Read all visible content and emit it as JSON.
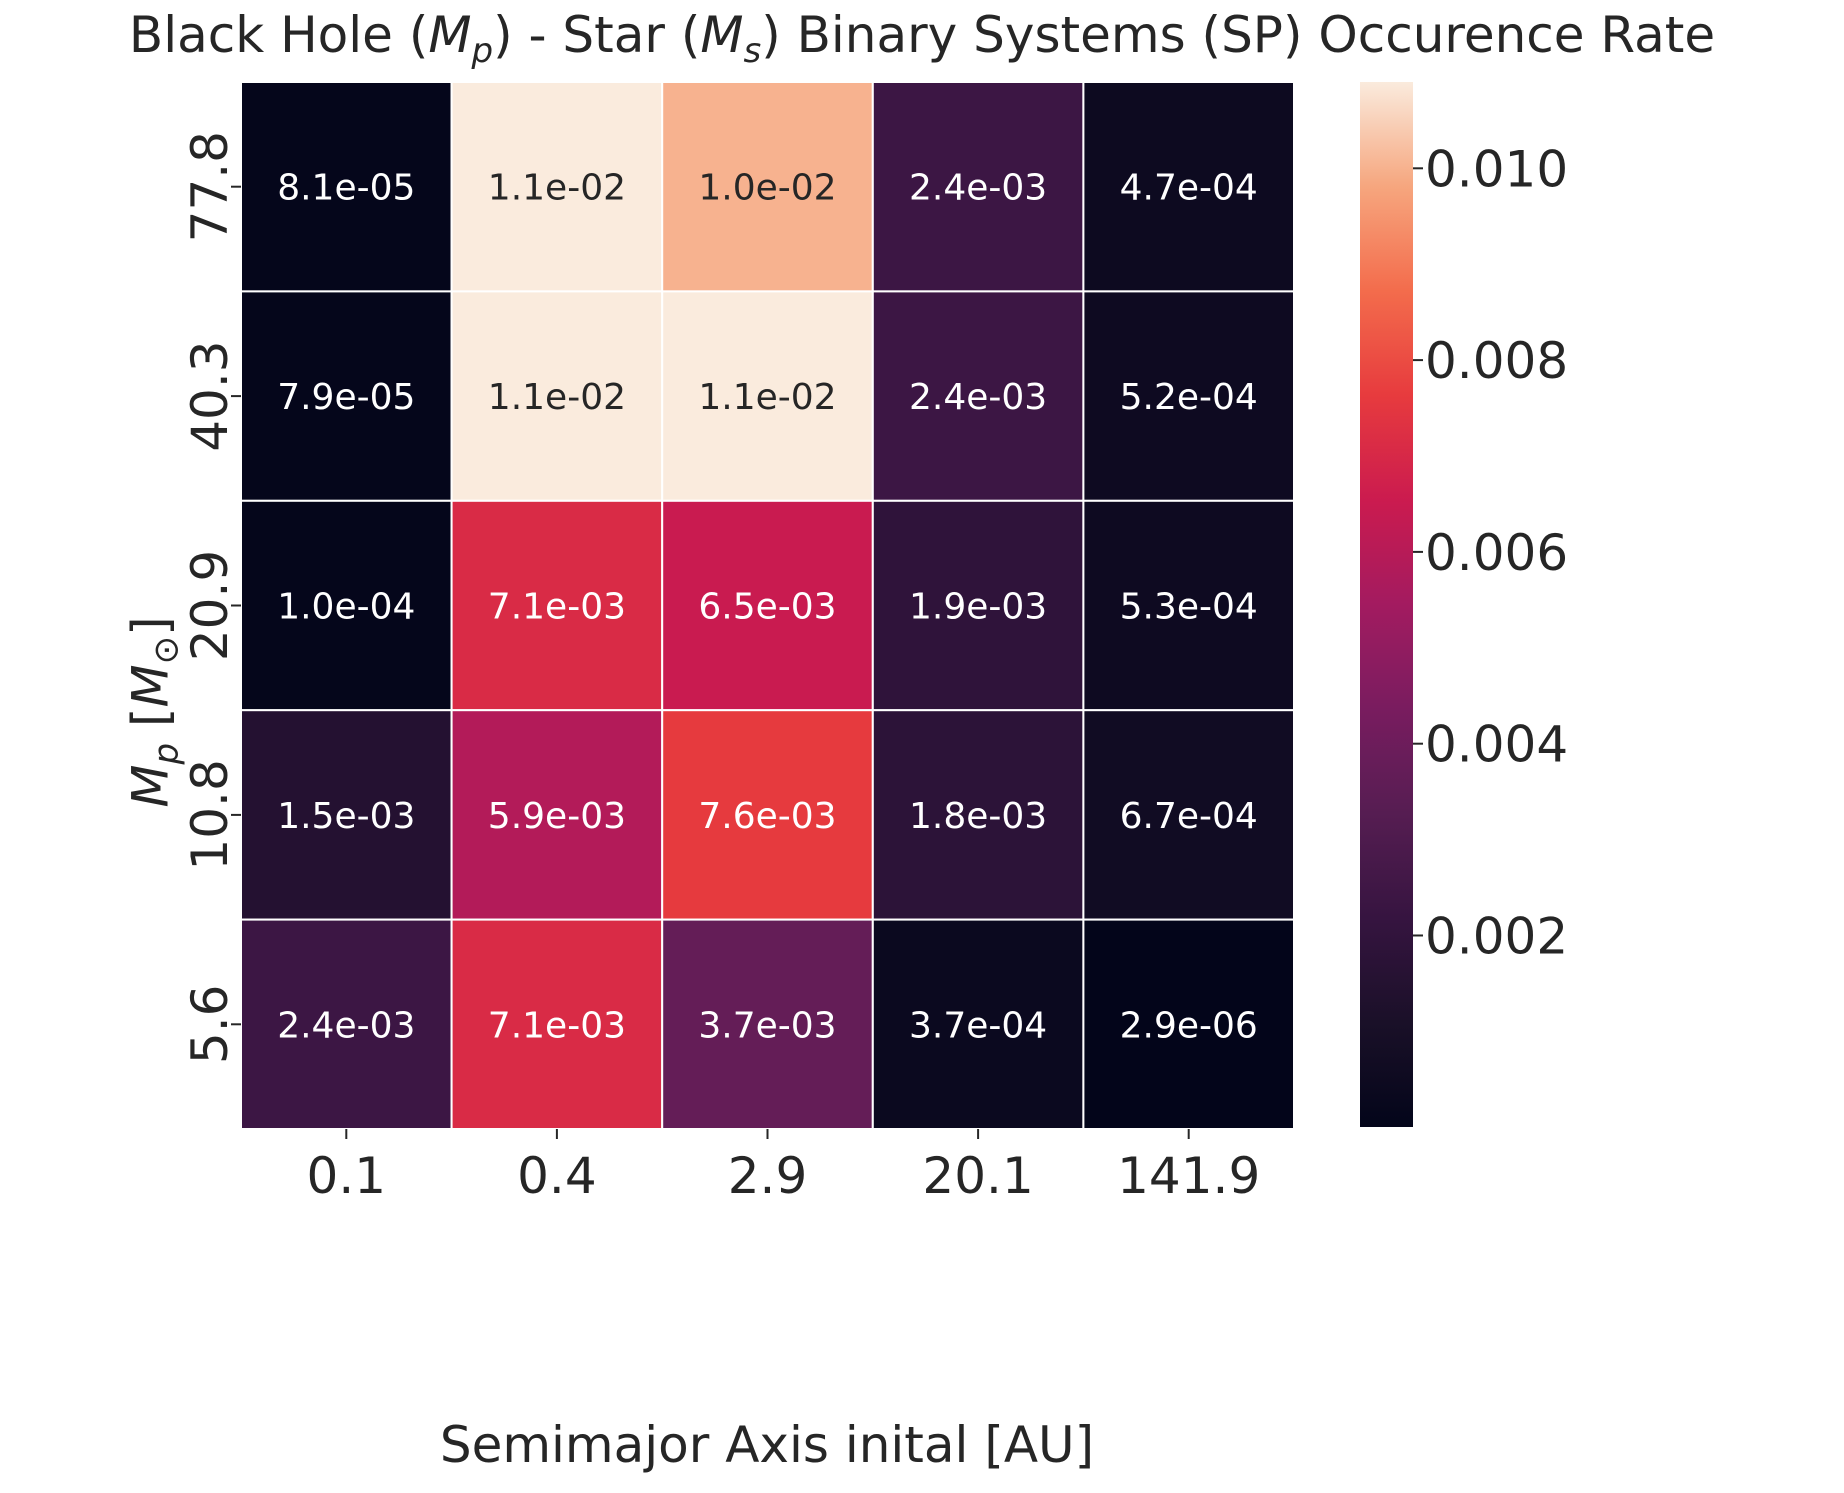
{
  "chart_data": {
    "type": "heatmap",
    "title": {
      "prefix": "Black Hole (",
      "p_sym": "M",
      "p_sub": "p",
      "middle": ")  - Star (",
      "s_sym": "M",
      "s_sub": "s",
      "suffix": ") Binary Systems (SP) Occurence Rate"
    },
    "xlabel": "Semimajor Axis inital [AU]",
    "ylabel": {
      "sym": "M",
      "sub": "p",
      "unit_open": "  [",
      "unit_sym": "M",
      "unit_sub": "⊙",
      "unit_close": "]"
    },
    "x_categories": [
      "0.1",
      "0.4",
      "2.9",
      "20.1",
      "141.9"
    ],
    "y_categories": [
      "77.8",
      "40.3",
      "20.9",
      "10.8",
      "5.6"
    ],
    "values": [
      [
        8.1e-05,
        0.011,
        0.01,
        0.0024,
        0.00047
      ],
      [
        7.9e-05,
        0.011,
        0.011,
        0.0024,
        0.00052
      ],
      [
        0.0001,
        0.0071,
        0.0065,
        0.0019,
        0.00053
      ],
      [
        0.0015,
        0.0059,
        0.0076,
        0.0018,
        0.00067
      ],
      [
        0.0024,
        0.0071,
        0.0037,
        0.00037,
        2.9e-06
      ]
    ],
    "labels": [
      [
        "8.1e-05",
        "1.1e-02",
        "1.0e-02",
        "2.4e-03",
        "4.7e-04"
      ],
      [
        "7.9e-05",
        "1.1e-02",
        "1.1e-02",
        "2.4e-03",
        "5.2e-04"
      ],
      [
        "1.0e-04",
        "7.1e-03",
        "6.5e-03",
        "1.9e-03",
        "5.3e-04"
      ],
      [
        "1.5e-03",
        "5.9e-03",
        "7.6e-03",
        "1.8e-03",
        "6.7e-04"
      ],
      [
        "2.4e-03",
        "7.1e-03",
        "3.7e-03",
        "3.7e-04",
        "2.9e-06"
      ]
    ],
    "colorbar": {
      "vmin": 2.9e-06,
      "vmax": 0.0109,
      "ticks": [
        0.002,
        0.004,
        0.006,
        0.008,
        0.01
      ],
      "tick_labels": [
        "0.002",
        "0.004",
        "0.006",
        "0.008",
        "0.010"
      ]
    },
    "colormap": "rocket",
    "grid": false,
    "cell_border_color": "#ffffff"
  }
}
